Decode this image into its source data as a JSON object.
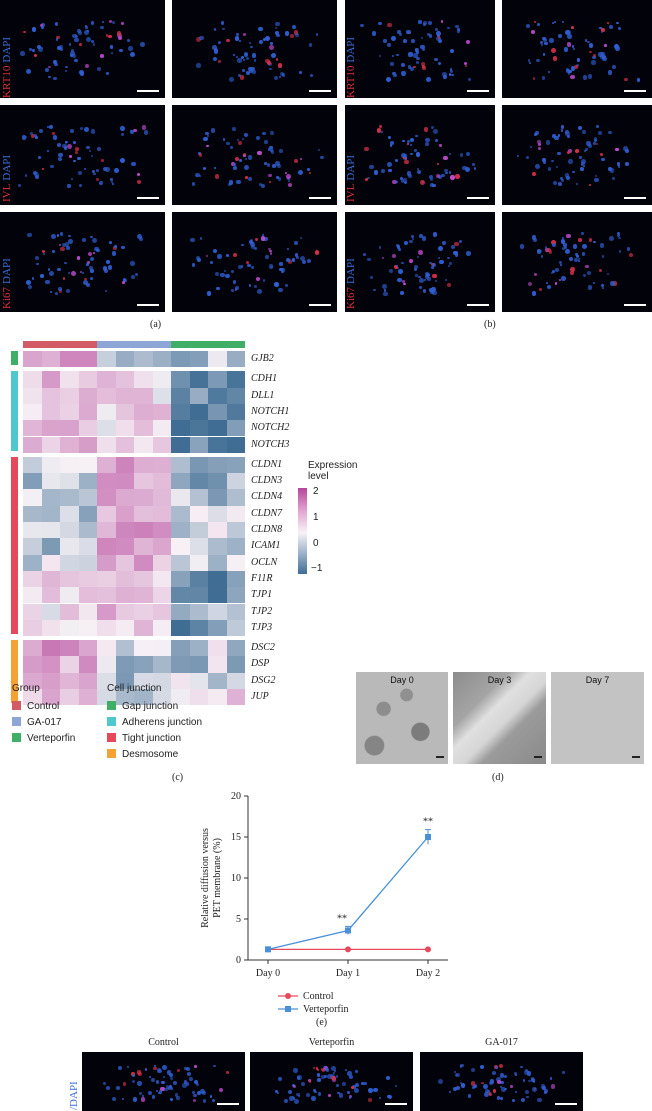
{
  "panel_a": {
    "labels": [
      {
        "marker": "KRT10",
        "sep": "/",
        "dapi": "DAPI"
      },
      {
        "marker": "IVL",
        "sep": "/",
        "dapi": "DAPI"
      },
      {
        "marker": "Ki67",
        "sep": "/",
        "dapi": "DAPI"
      }
    ],
    "letter": "(a)"
  },
  "panel_b": {
    "labels": [
      {
        "marker": "KRT10",
        "sep": "/",
        "dapi": "DAPI"
      },
      {
        "marker": "IVL",
        "sep": "/",
        "dapi": "DAPI"
      },
      {
        "marker": "Ki67",
        "sep": "/",
        "dapi": "DAPI"
      }
    ],
    "letter": "(b)"
  },
  "panel_c": {
    "letter": "(c)",
    "genes": [
      "GJB2",
      "CDH1",
      "DLL1",
      "NOTCH1",
      "NOTCH2",
      "NOTCH3",
      "CLDN1",
      "CLDN3",
      "CLDN4",
      "CLDN7",
      "CLDN8",
      "ICAM1",
      "OCLN",
      "F11R",
      "TJP1",
      "TJP2",
      "TJP3",
      "DSC2",
      "DSP",
      "DSG2",
      "JUP"
    ],
    "expression_legend": {
      "title_line1": "Expression",
      "title_line2": "level",
      "ticks": [
        "2",
        "1",
        "0",
        "−1"
      ]
    },
    "group_legend": {
      "title": "Group",
      "items": [
        {
          "label": "Control",
          "color": "#d35b66"
        },
        {
          "label": "GA-017",
          "color": "#8ea6d6"
        },
        {
          "label": "Verteporfin",
          "color": "#3fae66"
        }
      ]
    },
    "junction_legend": {
      "title": "Cell junction",
      "items": [
        {
          "label": "Gap junction",
          "color": "#3fae66"
        },
        {
          "label": "Adherens junction",
          "color": "#4fc7cf"
        },
        {
          "label": "Tight junction",
          "color": "#e5495a"
        },
        {
          "label": "Desmosome",
          "color": "#f3a233"
        }
      ]
    },
    "colors": {
      "high": "#b6479c",
      "mid": "#f7f2f6",
      "low": "#3f6d94"
    }
  },
  "panel_d": {
    "letter": "(d)",
    "days": [
      "Day 0",
      "Day 3",
      "Day 7"
    ]
  },
  "panel_e": {
    "letter": "(e)",
    "chart_data": {
      "type": "line",
      "categories": [
        "Day 0",
        "Day 1",
        "Day 2"
      ],
      "ylabel_line1": "Relative diffusion versus",
      "ylabel_line2": "PET membrane (%)",
      "ylim": [
        0,
        20
      ],
      "yticks": [
        "0",
        "5",
        "10",
        "15",
        "20"
      ],
      "series": [
        {
          "name": "Control",
          "values": [
            1.3,
            1.3,
            1.3
          ],
          "color": "#e5495a",
          "marker": "circle"
        },
        {
          "name": "Verteporfin",
          "values": [
            1.3,
            3.6,
            15.0
          ],
          "errors": [
            0,
            0.5,
            0.9
          ],
          "color": "#4a90d9",
          "marker": "square"
        }
      ],
      "annotations": [
        {
          "category": "Day 1",
          "text": "**"
        },
        {
          "category": "Day 2",
          "text": "**"
        }
      ]
    }
  },
  "panel_f": {
    "columns": [
      "Control",
      "Verteporfin",
      "GA-017"
    ],
    "label": "/DAPI"
  }
}
